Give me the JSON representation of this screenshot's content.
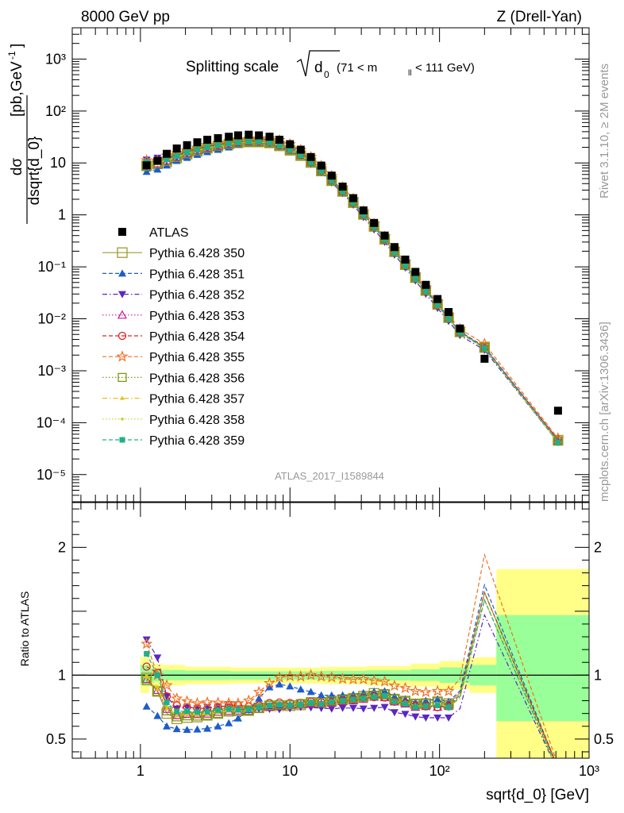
{
  "header": {
    "left": "8000 GeV pp",
    "right": "Z (Drell-Yan)"
  },
  "side_labels": {
    "top": "Rivet 3.1.10, ≥ 2M events",
    "bottom": "mcplots.cern.ch [arXiv:1306.3436]"
  },
  "chart_data": [
    {
      "type": "scatter",
      "panel": "main",
      "title": {
        "main": "Splitting scale",
        "symbol": "d",
        "symbol_sub": "0",
        "range_pre": "(71 < m",
        "range_sub": "ll",
        "range_post": " < 111 GeV)"
      },
      "ylabel": "dσ / dsqrt{d_0} [pb,GeV⁻¹]",
      "ylabel_parts": {
        "num": "dσ",
        "den": "dsqrt{d_0}",
        "unit_a": "[pb,GeV",
        "unit_exp": "-1",
        "unit_b": "]"
      },
      "yscale": "log",
      "ylim": [
        3e-06,
        4000
      ],
      "xscale": "log",
      "xlim": [
        0.35,
        1000
      ],
      "y_ticks": [
        "10⁻⁵",
        "10⁻⁴",
        "10⁻³",
        "10⁻²",
        "10⁻¹",
        "1",
        "10",
        "10²",
        "10³"
      ],
      "y_tick_values": [
        1e-05,
        0.0001,
        0.001,
        0.01,
        0.1,
        1,
        10,
        100,
        1000
      ],
      "watermark": "ATLAS_2017_I1589844",
      "legend_position": "left",
      "x": [
        1.1,
        1.3,
        1.5,
        1.75,
        2.05,
        2.4,
        2.8,
        3.3,
        3.9,
        4.5,
        5.3,
        6.2,
        7.3,
        8.5,
        10,
        11.8,
        13.8,
        16.2,
        19,
        22.5,
        26.5,
        31,
        36.5,
        43,
        50,
        59,
        69,
        81,
        97,
        115,
        137,
        200,
        620
      ],
      "series": [
        {
          "name": "ATLAS",
          "color": "#000000",
          "marker": "square-filled",
          "line": "none",
          "values": [
            9,
            11,
            15,
            19,
            22,
            25,
            28,
            30,
            32,
            34,
            35,
            34,
            32,
            28,
            23,
            18,
            13,
            8.9,
            5.7,
            3.5,
            2.1,
            1.22,
            0.7,
            0.4,
            0.24,
            0.138,
            0.08,
            0.045,
            0.024,
            0.0135,
            0.0065,
            0.0017,
            0.00017
          ]
        },
        {
          "name": "Pythia 6.428 350",
          "color": "#a09a30",
          "marker": "square-open-large",
          "line": "solid",
          "values": [
            8.8,
            9.6,
            10.5,
            12.5,
            14.7,
            16.8,
            19.2,
            21,
            23,
            24.5,
            25.3,
            25.3,
            24.3,
            21.3,
            17.5,
            13.8,
            10.2,
            7,
            4.55,
            2.83,
            1.72,
            1.02,
            0.6,
            0.34,
            0.195,
            0.11,
            0.062,
            0.035,
            0.019,
            0.0105,
            0.0056,
            0.0028,
            4.6e-05
          ]
        },
        {
          "name": "Pythia 6.428 351",
          "color": "#1e5cc8",
          "marker": "triangle-up",
          "line": "dashed",
          "values": [
            6.8,
            7.5,
            9.0,
            11.0,
            12.6,
            14.4,
            16.3,
            18.0,
            20.0,
            22.5,
            25.5,
            27.8,
            29.0,
            26.0,
            21.0,
            16.0,
            11.3,
            7.5,
            4.8,
            2.95,
            1.78,
            1.05,
            0.61,
            0.35,
            0.2,
            0.112,
            0.063,
            0.036,
            0.0195,
            0.0107,
            0.0057,
            0.0029,
            4.6e-05
          ]
        },
        {
          "name": "Pythia 6.428 352",
          "color": "#5a28c0",
          "marker": "triangle-down",
          "line": "dashdot",
          "values": [
            11.5,
            12.5,
            12.5,
            14.0,
            16.5,
            18.5,
            21.0,
            22.5,
            24.0,
            25.0,
            25.5,
            25.0,
            23.5,
            20.5,
            17.0,
            13.5,
            9.7,
            6.6,
            4.2,
            2.6,
            1.56,
            0.9,
            0.52,
            0.3,
            0.17,
            0.096,
            0.054,
            0.03,
            0.016,
            0.009,
            0.0048,
            0.0025,
            4.2e-05
          ]
        },
        {
          "name": "Pythia 6.428 353",
          "color": "#c41e94",
          "marker": "triangle-up-open",
          "line": "dotted",
          "values": [
            8.7,
            9.7,
            11.0,
            13.0,
            15.3,
            17.3,
            19.5,
            21.3,
            23.0,
            24.5,
            25.2,
            25.0,
            24.0,
            21.2,
            17.5,
            13.8,
            10.1,
            6.9,
            4.45,
            2.78,
            1.68,
            0.99,
            0.58,
            0.33,
            0.19,
            0.107,
            0.06,
            0.034,
            0.018,
            0.0102,
            0.0054,
            0.0027,
            4.4e-05
          ]
        },
        {
          "name": "Pythia 6.428 354",
          "color": "#e0201e",
          "marker": "circle-open",
          "line": "dashed",
          "values": [
            9.6,
            11.2,
            12.5,
            14.5,
            16.5,
            18.5,
            20.7,
            22.5,
            24.5,
            26.0,
            26.5,
            26.0,
            25.0,
            22.0,
            18.0,
            14.1,
            10.3,
            7.0,
            4.5,
            2.8,
            1.7,
            1.0,
            0.58,
            0.33,
            0.19,
            0.108,
            0.061,
            0.034,
            0.018,
            0.0102,
            0.0055,
            0.0028,
            4.7e-05
          ]
        },
        {
          "name": "Pythia 6.428 355",
          "color": "#f07020",
          "marker": "star-open",
          "line": "dashed",
          "values": [
            11.2,
            11.0,
            13.8,
            15.5,
            17.5,
            19.5,
            22.0,
            23.5,
            25.0,
            26.5,
            28.0,
            29.5,
            30.0,
            27.5,
            22.8,
            17.8,
            13.0,
            8.8,
            5.6,
            3.4,
            2.03,
            1.18,
            0.67,
            0.38,
            0.22,
            0.124,
            0.07,
            0.039,
            0.021,
            0.0118,
            0.0063,
            0.0033,
            5e-05
          ]
        },
        {
          "name": "Pythia 6.428 356",
          "color": "#7a9a18",
          "marker": "square-open",
          "line": "dotted",
          "values": [
            8.6,
            9.6,
            10.8,
            12.8,
            15.0,
            17.0,
            19.2,
            21.0,
            22.8,
            24.3,
            25.3,
            25.2,
            24.4,
            21.5,
            17.7,
            14.0,
            10.3,
            7.0,
            4.55,
            2.83,
            1.72,
            1.01,
            0.59,
            0.34,
            0.195,
            0.11,
            0.062,
            0.035,
            0.019,
            0.0104,
            0.0055,
            0.0028,
            4.4e-05
          ]
        },
        {
          "name": "Pythia 6.428 357",
          "color": "#e8c018",
          "marker": "tri-small",
          "line": "dashdot",
          "values": [
            8.9,
            9.8,
            11.1,
            13.0,
            15.2,
            17.2,
            19.4,
            21.2,
            23.0,
            24.4,
            25.3,
            25.2,
            24.3,
            21.4,
            17.6,
            13.9,
            10.2,
            6.9,
            4.5,
            2.8,
            1.7,
            1.0,
            0.59,
            0.335,
            0.19,
            0.108,
            0.061,
            0.034,
            0.0185,
            0.0102,
            0.0053,
            0.0027,
            4.1e-05
          ]
        },
        {
          "name": "Pythia 6.428 358",
          "color": "#c8d018",
          "marker": "dot",
          "line": "dotted",
          "values": [
            9.0,
            10.0,
            11.3,
            13.2,
            15.4,
            17.4,
            19.6,
            21.4,
            23.2,
            24.6,
            25.5,
            25.4,
            24.5,
            21.6,
            17.8,
            14.0,
            10.3,
            7.0,
            4.55,
            2.83,
            1.72,
            1.01,
            0.59,
            0.34,
            0.193,
            0.109,
            0.061,
            0.034,
            0.0185,
            0.0102,
            0.0054,
            0.0027,
            4.2e-05
          ]
        },
        {
          "name": "Pythia 6.428 359",
          "color": "#20b088",
          "marker": "square-small",
          "line": "dashed",
          "values": [
            10.5,
            11.0,
            11.8,
            13.6,
            15.8,
            17.8,
            20.0,
            21.8,
            23.5,
            24.8,
            25.6,
            25.4,
            24.4,
            21.5,
            17.6,
            13.9,
            10.2,
            6.9,
            4.5,
            2.8,
            1.7,
            1.0,
            0.58,
            0.335,
            0.19,
            0.107,
            0.06,
            0.034,
            0.0183,
            0.0101,
            0.0054,
            0.0027,
            4.2e-05
          ]
        }
      ]
    },
    {
      "type": "scatter",
      "panel": "ratio",
      "ylabel": "Ratio to ATLAS",
      "xlabel": "sqrt{d_0} [GeV]",
      "ylim": [
        0.35,
        2.35
      ],
      "y_ticks": [
        "0.5",
        "1",
        "2"
      ],
      "y_tick_values": [
        0.5,
        1,
        2
      ],
      "x_ticks": [
        "1",
        "10",
        "10²",
        "10³"
      ],
      "x_tick_values": [
        1,
        10,
        100,
        1000
      ],
      "reference_line": 1,
      "bands": [
        {
          "name": "total uncertainty",
          "color": "#ffff88",
          "bins": [
            [
              1.0,
              1.15,
              0.86,
              1.14
            ],
            [
              1.15,
              1.4,
              0.91,
              1.09
            ],
            [
              1.4,
              2,
              0.92,
              1.08
            ],
            [
              2,
              4,
              0.93,
              1.065
            ],
            [
              4,
              8,
              0.935,
              1.06
            ],
            [
              8,
              16,
              0.935,
              1.06
            ],
            [
              16,
              32,
              0.93,
              1.065
            ],
            [
              32,
              64,
              0.92,
              1.07
            ],
            [
              64,
              100,
              0.91,
              1.09
            ],
            [
              100,
              160,
              0.89,
              1.11
            ],
            [
              160,
              240,
              0.86,
              1.14
            ],
            [
              240,
              1000,
              0.34,
              1.83
            ]
          ]
        },
        {
          "name": "statistical uncertainty",
          "color": "#99ff99",
          "bins": [
            [
              1.0,
              1.15,
              0.92,
              1.08
            ],
            [
              1.15,
              1.4,
              0.95,
              1.05
            ],
            [
              1.4,
              2,
              0.96,
              1.04
            ],
            [
              2,
              4,
              0.962,
              1.035
            ],
            [
              4,
              8,
              0.965,
              1.03
            ],
            [
              8,
              16,
              0.965,
              1.03
            ],
            [
              16,
              32,
              0.963,
              1.033
            ],
            [
              32,
              64,
              0.958,
              1.038
            ],
            [
              64,
              100,
              0.955,
              1.045
            ],
            [
              100,
              160,
              0.94,
              1.06
            ],
            [
              160,
              240,
              0.92,
              1.08
            ],
            [
              240,
              1000,
              0.64,
              1.47
            ]
          ]
        }
      ]
    }
  ]
}
